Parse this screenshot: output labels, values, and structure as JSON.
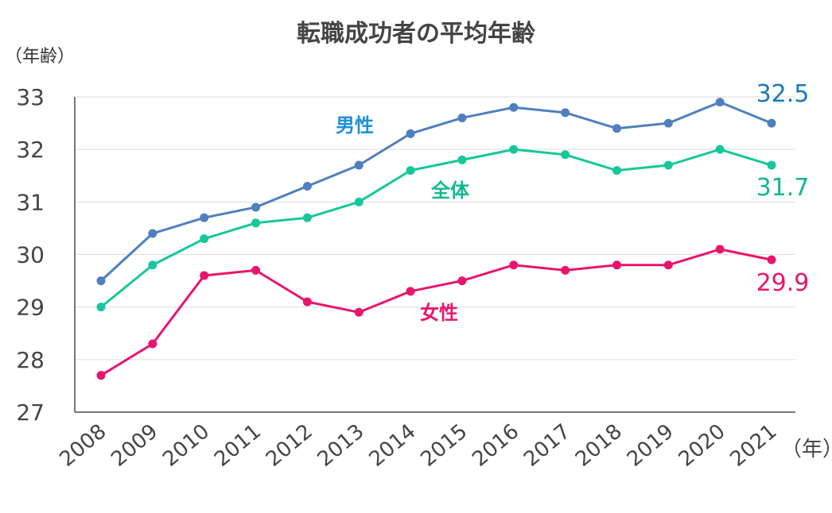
{
  "chart_data": {
    "type": "line",
    "title": "転職成功者の平均年齢",
    "ylabel": "（年齢）",
    "xlabel": "（年）",
    "ylim": [
      27,
      33
    ],
    "yticks": [
      27,
      28,
      29,
      30,
      31,
      32,
      33
    ],
    "grid": true,
    "x": [
      "2008",
      "2009",
      "2010",
      "2011",
      "2012",
      "2013",
      "2014",
      "2015",
      "2016",
      "2017",
      "2018",
      "2019",
      "2020",
      "2021"
    ],
    "series": [
      {
        "name": "男性",
        "color": "#4f7fbf",
        "label_color": "#1f8fd6",
        "end_label": "32.5",
        "end_color": "#1a7ab8",
        "values": [
          29.5,
          30.4,
          30.7,
          30.9,
          31.3,
          31.7,
          32.3,
          32.6,
          32.8,
          32.7,
          32.4,
          32.5,
          32.9,
          32.5
        ]
      },
      {
        "name": "全体",
        "color": "#17c79b",
        "label_color": "#12b890",
        "end_label": "31.7",
        "end_color": "#12b890",
        "values": [
          29.0,
          29.8,
          30.3,
          30.6,
          30.7,
          31.0,
          31.6,
          31.8,
          32.0,
          31.9,
          31.6,
          31.7,
          32.0,
          31.7
        ]
      },
      {
        "name": "女性",
        "color": "#e8156e",
        "label_color": "#e8156e",
        "end_label": "29.9",
        "end_color": "#e8156e",
        "values": [
          27.7,
          28.3,
          29.6,
          29.7,
          29.1,
          28.9,
          29.3,
          29.5,
          29.8,
          29.7,
          29.8,
          29.8,
          30.1,
          29.9
        ]
      }
    ]
  }
}
